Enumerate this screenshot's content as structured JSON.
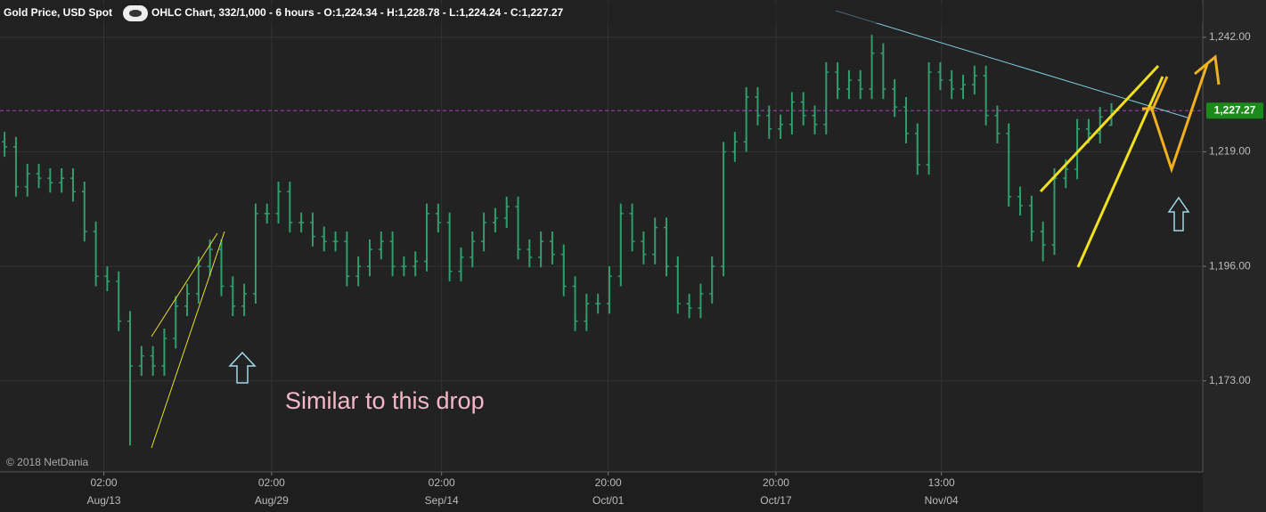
{
  "chart_data": {
    "type": "ohlc",
    "title": "Gold Price, USD Spot",
    "subtitle": "OHLC Chart, 332/1,000 - 6 hours - O:1,224.34 - H:1,228.78 - L:1,224.24 - C:1,227.27",
    "annotation": "Similar to this drop",
    "copyright": "© 2018 NetDania",
    "color": "#2f9e6c",
    "xlim": [
      -0.4,
      105
    ],
    "ylim": [
      1154.7,
      1249.5
    ],
    "yticks": [
      {
        "value": 1242,
        "label": "1,242.00"
      },
      {
        "value": 1219,
        "label": "1,219.00"
      },
      {
        "value": 1196,
        "label": "1,196.00"
      },
      {
        "value": 1173,
        "label": "1,173.00"
      }
    ],
    "xticks": [
      {
        "value": 8.7,
        "label": "02:00",
        "sublabel": "Aug/13"
      },
      {
        "value": 23.4,
        "label": "02:00",
        "sublabel": "Aug/29"
      },
      {
        "value": 38.3,
        "label": "02:00",
        "sublabel": "Sep/14"
      },
      {
        "value": 52.9,
        "label": "20:00",
        "sublabel": "Oct/01"
      },
      {
        "value": 67.6,
        "label": "20:00",
        "sublabel": "Oct/17"
      },
      {
        "value": 82.1,
        "label": "13:00",
        "sublabel": "Nov/04"
      }
    ],
    "current": {
      "value": 1227.27,
      "label": "1,227.27",
      "color": "#b040c0"
    },
    "grid": true,
    "open": [
      1221,
      1220,
      1212,
      1214.6,
      1213.7,
      1212.8,
      1213.7,
      1211,
      1203,
      1194,
      1193,
      1185,
      1176,
      1178,
      1176,
      1181.5,
      1188,
      1190.5,
      1196,
      1199.4,
      1192,
      1188,
      1190.5,
      1206.6,
      1206.6,
      1211,
      1204.8,
      1204.8,
      1202,
      1201,
      1201,
      1194,
      1196,
      1199.4,
      1201,
      1196,
      1196,
      1197,
      1206.6,
      1204.8,
      1195,
      1197.8,
      1201,
      1204.8,
      1205.7,
      1208,
      1199.4,
      1197.8,
      1201,
      1198.4,
      1192,
      1185,
      1188.5,
      1188.5,
      1194,
      1206.6,
      1201,
      1198.4,
      1203.8,
      1196,
      1188.5,
      1187.6,
      1190.5,
      1196,
      1219,
      1221,
      1230,
      1226.3,
      1223.6,
      1224.5,
      1229,
      1226.3,
      1224.5,
      1235,
      1231.6,
      1233.4,
      1231.6,
      1238.8,
      1231.6,
      1228,
      1222.7,
      1216.4,
      1235,
      1233.4,
      1231.6,
      1232.5,
      1234.3,
      1226.3,
      1222.7,
      1210,
      1208.2,
      1203,
      1200.3,
      1213.7,
      1215.5,
      1223.6,
      1222.7,
      1224.34
    ],
    "high": [
      1223,
      1222,
      1216.6,
      1216.6,
      1215.7,
      1215.7,
      1215.7,
      1213,
      1205,
      1196,
      1195,
      1187,
      1180,
      1180,
      1183.5,
      1190,
      1192.5,
      1198,
      1201.4,
      1201.4,
      1194,
      1192.5,
      1208.6,
      1208.6,
      1213,
      1213,
      1206.8,
      1206.8,
      1204,
      1203,
      1203,
      1198,
      1201.4,
      1203,
      1203,
      1198,
      1199,
      1208.6,
      1208.6,
      1206.8,
      1199.8,
      1203,
      1206.8,
      1207.7,
      1210,
      1210,
      1201.4,
      1203,
      1203,
      1200.4,
      1194,
      1190.5,
      1190.5,
      1196,
      1208.6,
      1208.6,
      1203,
      1205.8,
      1205.8,
      1198,
      1190.5,
      1192.5,
      1198,
      1221,
      1223,
      1232,
      1232,
      1228.3,
      1226.5,
      1231,
      1231,
      1228.3,
      1237,
      1237,
      1235.4,
      1235.4,
      1242.5,
      1240.8,
      1233.6,
      1230,
      1224.7,
      1237,
      1237,
      1235.4,
      1234.5,
      1236.3,
      1236.3,
      1228.3,
      1224.7,
      1212,
      1210.2,
      1205,
      1215.7,
      1217.5,
      1225.6,
      1225.6,
      1228,
      1228.78
    ],
    "low": [
      1218,
      1210,
      1210,
      1211.7,
      1210.8,
      1210.8,
      1209,
      1201,
      1192,
      1191,
      1183,
      1160,
      1174,
      1174,
      1174,
      1179.5,
      1186,
      1188.5,
      1194,
      1190,
      1186,
      1186,
      1188.5,
      1204.6,
      1204.6,
      1202.8,
      1202.8,
      1200,
      1199,
      1199,
      1192,
      1192,
      1194,
      1197.4,
      1194,
      1194,
      1194,
      1195,
      1202.8,
      1193,
      1193,
      1195.8,
      1199,
      1202.8,
      1203.7,
      1197.4,
      1195.8,
      1195.8,
      1196.4,
      1190,
      1183,
      1183,
      1186.5,
      1186.5,
      1192,
      1199,
      1196.4,
      1196.4,
      1194,
      1186.5,
      1185.6,
      1185.6,
      1188.5,
      1194,
      1217,
      1219,
      1224.3,
      1221.6,
      1221.6,
      1222.5,
      1224.3,
      1222.5,
      1222.5,
      1229.6,
      1229.6,
      1229.6,
      1229.6,
      1229.6,
      1226,
      1220.7,
      1214.4,
      1214.4,
      1231.4,
      1229.6,
      1229.6,
      1230.5,
      1224.3,
      1220.7,
      1208,
      1206.2,
      1201,
      1197,
      1198.3,
      1211.7,
      1213.5,
      1220.7,
      1220.7,
      1224.24
    ],
    "close": [
      1220,
      1212,
      1214.6,
      1213.7,
      1212.8,
      1213.7,
      1211,
      1203,
      1194,
      1193,
      1185,
      1176,
      1178,
      1176,
      1181.5,
      1188,
      1190.5,
      1196,
      1199.4,
      1192,
      1188,
      1190.5,
      1206.6,
      1206.6,
      1211,
      1204.8,
      1204.8,
      1202,
      1201,
      1201,
      1194,
      1196,
      1199.4,
      1201,
      1196,
      1196,
      1197,
      1206.6,
      1204.8,
      1195,
      1197.8,
      1201,
      1204.8,
      1205.7,
      1208,
      1199.4,
      1197.8,
      1201,
      1198.4,
      1192,
      1185,
      1188.5,
      1188.5,
      1194,
      1206.6,
      1201,
      1198.4,
      1203.8,
      1196,
      1188.5,
      1187.6,
      1190.5,
      1196,
      1219,
      1221,
      1230,
      1226.3,
      1223.6,
      1224.5,
      1229,
      1226.3,
      1224.5,
      1235,
      1231.6,
      1233.4,
      1231.6,
      1238.8,
      1231.6,
      1228,
      1222.7,
      1216.4,
      1235,
      1233.4,
      1231.6,
      1232.5,
      1234.3,
      1226.3,
      1222.7,
      1210,
      1208.2,
      1203,
      1200.3,
      1213.7,
      1215.5,
      1223.6,
      1222.7,
      1226,
      1227.27
    ]
  }
}
